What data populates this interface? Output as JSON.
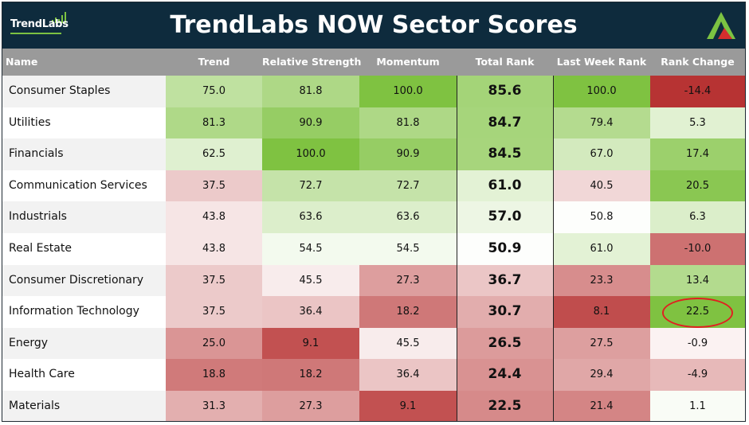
{
  "header": {
    "title": "TrendLabs NOW Sector Scores",
    "logo_text": "TrendLabs",
    "bg_color": "#0e2b3d"
  },
  "columns": [
    "Name",
    "Trend",
    "Relative Strength",
    "Momentum",
    "Total Rank",
    "Last Week Rank",
    "Rank Change"
  ],
  "chart_data": {
    "type": "table",
    "title": "TrendLabs NOW Sector Scores",
    "columns": [
      "Name",
      "Trend",
      "Relative Strength",
      "Momentum",
      "Total Rank",
      "Last Week Rank",
      "Rank Change"
    ],
    "rows": [
      {
        "name": "Consumer Staples",
        "trend": "75.0",
        "rs": "81.8",
        "momentum": "100.0",
        "total": "85.6",
        "last_week": "100.0",
        "change": "-14.4"
      },
      {
        "name": "Utilities",
        "trend": "81.3",
        "rs": "90.9",
        "momentum": "81.8",
        "total": "84.7",
        "last_week": "79.4",
        "change": "5.3"
      },
      {
        "name": "Financials",
        "trend": "62.5",
        "rs": "100.0",
        "momentum": "90.9",
        "total": "84.5",
        "last_week": "67.0",
        "change": "17.4"
      },
      {
        "name": "Communication Services",
        "trend": "37.5",
        "rs": "72.7",
        "momentum": "72.7",
        "total": "61.0",
        "last_week": "40.5",
        "change": "20.5"
      },
      {
        "name": "Industrials",
        "trend": "43.8",
        "rs": "63.6",
        "momentum": "63.6",
        "total": "57.0",
        "last_week": "50.8",
        "change": "6.3"
      },
      {
        "name": "Real Estate",
        "trend": "43.8",
        "rs": "54.5",
        "momentum": "54.5",
        "total": "50.9",
        "last_week": "61.0",
        "change": "-10.0"
      },
      {
        "name": "Consumer Discretionary",
        "trend": "37.5",
        "rs": "45.5",
        "momentum": "27.3",
        "total": "36.7",
        "last_week": "23.3",
        "change": "13.4"
      },
      {
        "name": "Information Technology",
        "trend": "37.5",
        "rs": "36.4",
        "momentum": "18.2",
        "total": "30.7",
        "last_week": "8.1",
        "change": "22.5",
        "highlight": "change"
      },
      {
        "name": "Energy",
        "trend": "25.0",
        "rs": "9.1",
        "momentum": "45.5",
        "total": "26.5",
        "last_week": "27.5",
        "change": "-0.9"
      },
      {
        "name": "Health Care",
        "trend": "18.8",
        "rs": "18.2",
        "momentum": "36.4",
        "total": "24.4",
        "last_week": "29.4",
        "change": "-4.9"
      },
      {
        "name": "Materials",
        "trend": "31.3",
        "rs": "27.3",
        "momentum": "9.1",
        "total": "22.5",
        "last_week": "21.4",
        "change": "1.1"
      }
    ],
    "colors": {
      "high": "#7fc241",
      "mid": "#ffffff",
      "low": "#b42a2a",
      "highlight_circle": "#e02020"
    }
  }
}
